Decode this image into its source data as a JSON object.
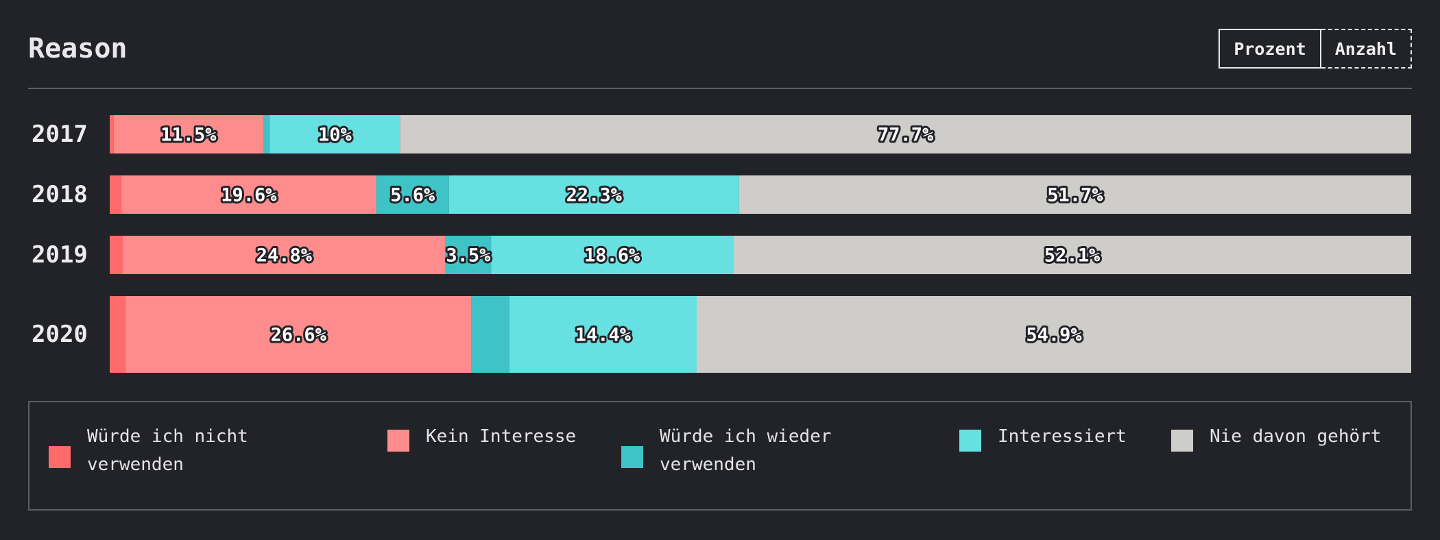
{
  "header": {
    "title": "Reason",
    "toggle_percent": "Prozent",
    "toggle_count": "Anzahl"
  },
  "chart_data": {
    "type": "bar",
    "orientation": "horizontal",
    "stacked": true,
    "normalized": true,
    "categories": [
      "2017",
      "2018",
      "2019",
      "2020"
    ],
    "series": [
      {
        "name": "Würde ich nicht verwenden",
        "color": "#ff6b6b",
        "values": [
          0.3,
          0.9,
          1.0,
          1.2
        ],
        "labels": [
          "",
          "",
          "",
          ""
        ]
      },
      {
        "name": "Kein Interesse",
        "color": "#ff8c8c",
        "values": [
          11.5,
          19.6,
          24.8,
          26.6
        ],
        "labels": [
          "11.5%",
          "19.6%",
          "24.8%",
          "26.6%"
        ]
      },
      {
        "name": "Würde ich wieder verwenden",
        "color": "#40c3c6",
        "values": [
          0.5,
          5.6,
          3.5,
          2.9
        ],
        "labels": [
          "",
          "5.6%",
          "3.5%",
          ""
        ]
      },
      {
        "name": "Interessiert",
        "color": "#66e0e0",
        "values": [
          10,
          22.3,
          18.6,
          14.4
        ],
        "labels": [
          "10%",
          "22.3%",
          "18.6%",
          "14.4%"
        ]
      },
      {
        "name": "Nie davon gehört",
        "color": "#cfcdca",
        "values": [
          77.7,
          51.7,
          52.1,
          54.9
        ],
        "labels": [
          "77.7%",
          "51.7%",
          "52.1%",
          "54.9%"
        ]
      }
    ],
    "xlim": [
      0,
      100
    ],
    "legend": "bottom"
  },
  "legend": {
    "items": [
      {
        "label": "Würde ich nicht verwenden",
        "color": "#ff6b6b"
      },
      {
        "label": "Kein Interesse",
        "color": "#ff8c8c"
      },
      {
        "label": "Würde ich wieder verwenden",
        "color": "#40c3c6"
      },
      {
        "label": "Interessiert",
        "color": "#66e0e0"
      },
      {
        "label": "Nie davon gehört",
        "color": "#cfcdca"
      }
    ]
  }
}
